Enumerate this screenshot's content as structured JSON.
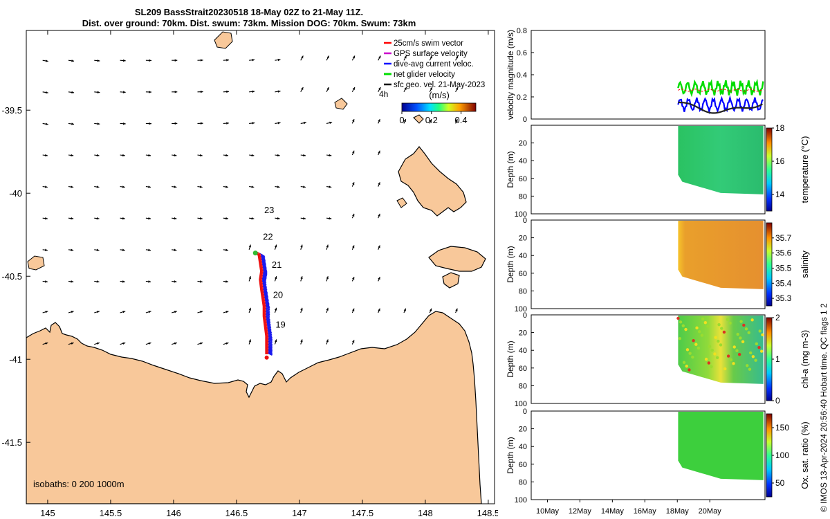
{
  "header": {
    "title_line1": "SL209 BassStrait20230518 18-May 02Z to 21-May 11Z.",
    "title_line2": "Dist. over ground: 70km. Dist. swum: 73km. Mission DOG: 70km. Swum: 73km"
  },
  "colors": {
    "land": "#f8c89a",
    "swim_vector": "#ff0000",
    "gps_surface": "#cc00cc",
    "dive_avg": "#0000ff",
    "net_glider": "#00dd00",
    "sfc_geo": "#000000",
    "track_red": "#ee1111",
    "track_blue": "#1a1aee",
    "temperature_fill": "#22bb55",
    "salinity_fill": "#e88a22",
    "chl_fill": "#44cc44",
    "oxsat_fill": "#33cc33"
  },
  "chart_data": [
    {
      "type": "map",
      "lon_ticks": [
        "145",
        "145.5",
        "146",
        "146.5",
        "147",
        "147.5",
        "148",
        "148.5"
      ],
      "lat_ticks": [
        "-39.5",
        "-40",
        "-40.5",
        "-41",
        "-41.5"
      ],
      "xlim": [
        144.83,
        148.55
      ],
      "ylim": [
        -41.87,
        -39.02
      ],
      "legend": {
        "placement": "top-right",
        "entries": [
          "25cm/s swim vector",
          "GPS surface velocity",
          "dive-avg current veloc.",
          "net glider velocity",
          "sfc geo. vel. 21-May-2023"
        ],
        "extra_label": "4h"
      },
      "colorbar": {
        "label": "(m/s)",
        "ticks": [
          "0",
          "0.2",
          "0.4"
        ],
        "range": [
          0,
          0.5
        ]
      },
      "isobath_note": "isobaths: 0   200  1000m",
      "day_labels": [
        {
          "label": "23",
          "lon": 146.72,
          "lat": -40.12
        },
        {
          "label": "22",
          "lon": 146.71,
          "lat": -40.28
        },
        {
          "label": "21",
          "lon": 146.78,
          "lat": -40.45
        },
        {
          "label": "20",
          "lon": 146.79,
          "lat": -40.63
        },
        {
          "label": "19",
          "lon": 146.81,
          "lat": -40.81
        }
      ],
      "track": [
        [
          146.66,
          -40.36
        ],
        [
          146.68,
          -40.37
        ],
        [
          146.69,
          -40.42
        ],
        [
          146.7,
          -40.47
        ],
        [
          146.69,
          -40.52
        ],
        [
          146.7,
          -40.58
        ],
        [
          146.71,
          -40.63
        ],
        [
          146.72,
          -40.68
        ],
        [
          146.72,
          -40.74
        ],
        [
          146.73,
          -40.8
        ],
        [
          146.74,
          -40.86
        ],
        [
          146.74,
          -40.92
        ],
        [
          146.74,
          -40.97
        ]
      ],
      "track_start": [
        146.74,
        -40.99
      ],
      "track_end": [
        146.65,
        -40.36
      ],
      "current_arrows_sample": [
        {
          "lon": 145.0,
          "lat": -39.2,
          "u": 0.15,
          "v": -0.05
        },
        {
          "lon": 146.0,
          "lat": -39.5,
          "u": 0.2,
          "v": 0.04
        },
        {
          "lon": 147.5,
          "lat": -40.3,
          "u": 0.05,
          "v": 0.15
        },
        {
          "lon": 146.5,
          "lat": -41.0,
          "u": 0.15,
          "v": 0.06
        }
      ]
    },
    {
      "type": "line",
      "ylabel": "velocity magnitude (m/s)",
      "ylim": [
        0,
        0.8
      ],
      "yticks": [
        "0",
        "0.2",
        "0.4",
        "0.6",
        "0.8"
      ],
      "series_colors": [
        "#00dd00",
        "#0000ff",
        "#ff0000",
        "#000000"
      ]
    },
    {
      "type": "scatter-section",
      "ylabel": "Depth (m)",
      "yticks": [
        "20",
        "40",
        "60",
        "80",
        "100"
      ],
      "ylim": [
        100,
        0
      ],
      "colorbar_label": "temperature (°C)",
      "colorbar_ticks": [
        "18",
        "16",
        "14"
      ],
      "colorbar_range": [
        13,
        18
      ]
    },
    {
      "type": "scatter-section",
      "ylabel": "Depth (m)",
      "yticks": [
        "0",
        "20",
        "40",
        "60",
        "80",
        "100"
      ],
      "ylim": [
        100,
        0
      ],
      "colorbar_label": "salinity",
      "colorbar_ticks": [
        "35.7",
        "35.6",
        "35.5",
        "35.4",
        "35.3"
      ],
      "colorbar_range": [
        35.25,
        35.8
      ]
    },
    {
      "type": "scatter-section",
      "ylabel": "Depth (m)",
      "yticks": [
        "0",
        "20",
        "40",
        "60",
        "80",
        "100"
      ],
      "ylim": [
        100,
        0
      ],
      "colorbar_label": "chl-a (mg m-3)",
      "colorbar_ticks": [
        "2",
        "1",
        "0"
      ],
      "colorbar_range": [
        0,
        2
      ]
    },
    {
      "type": "scatter-section",
      "ylabel": "Depth (m)",
      "yticks": [
        "0",
        "20",
        "40",
        "60",
        "80",
        "100"
      ],
      "ylim": [
        100,
        0
      ],
      "colorbar_label": "Ox. sat. ratio (%)",
      "colorbar_ticks": [
        "150",
        "100",
        "50"
      ],
      "colorbar_range": [
        25,
        175
      ]
    }
  ],
  "time_axis": {
    "ticks": [
      "10May",
      "12May",
      "14May",
      "16May",
      "18May",
      "20May"
    ]
  },
  "footer_vertical": "© IMOS 13-Apr-2024 20:56:40 Hobart time. QC flags 1  2"
}
